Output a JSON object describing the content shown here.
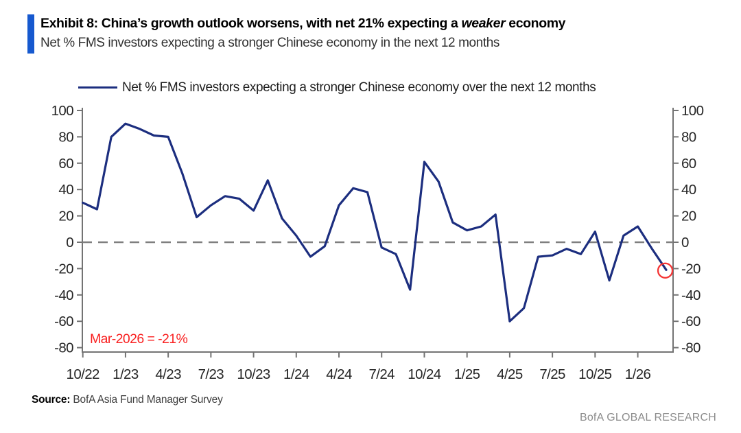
{
  "header": {
    "title_pre": "Exhibit 8: China’s growth outlook worsens, with net 21% expecting a ",
    "title_em": "weaker",
    "title_post": " economy",
    "subtitle": "Net % FMS investors expecting a stronger Chinese economy in the next 12 months"
  },
  "legend": {
    "label": "Net % FMS investors expecting a stronger Chinese economy over the next 12 months"
  },
  "chart_data": {
    "type": "line",
    "series_name": "Net % FMS investors expecting a stronger Chinese economy over the next 12 months",
    "months": [
      "10/22",
      "11/22",
      "12/22",
      "1/23",
      "2/23",
      "3/23",
      "4/23",
      "5/23",
      "6/23",
      "7/23",
      "8/23",
      "9/23",
      "10/23",
      "11/23",
      "12/23",
      "1/24",
      "2/24",
      "3/24",
      "4/24",
      "5/24",
      "6/24",
      "7/24",
      "8/24",
      "9/24",
      "10/24",
      "11/24",
      "12/24",
      "1/25",
      "2/25",
      "3/25",
      "4/25",
      "5/25",
      "6/25",
      "7/25",
      "8/25",
      "9/25",
      "10/25",
      "11/25",
      "12/25",
      "1/26",
      "2/26",
      "3/26"
    ],
    "values": [
      30,
      25,
      80,
      90,
      86,
      81,
      80,
      52,
      19,
      28,
      35,
      33,
      24,
      47,
      18,
      5,
      -11,
      -3,
      28,
      41,
      38,
      -4,
      -9,
      -36,
      61,
      46,
      15,
      9,
      12,
      21,
      -60,
      -50,
      -11,
      -10,
      -5,
      -9,
      8,
      -29,
      5,
      12,
      -5,
      -21
    ],
    "ylim": [
      -80,
      100
    ],
    "ytick_step": 20,
    "x_tick_labels": [
      "10/22",
      "1/23",
      "4/23",
      "7/23",
      "10/23",
      "1/24",
      "4/24",
      "7/24",
      "10/24",
      "1/25",
      "4/25",
      "7/25",
      "10/25",
      "1/26"
    ],
    "x_tick_every": 3,
    "grid": "off",
    "zero_line": "dashed",
    "legend_position": "top",
    "annotation": {
      "label": "Mar-2026 = -21%",
      "highlight_month": "3/26",
      "highlight_value": -21
    }
  },
  "footer": {
    "source_label": "Source:",
    "source_text": " BofA Asia Fund Manager Survey",
    "brand": "BofA GLOBAL RESEARCH"
  },
  "colors": {
    "line": "#1c2e7f",
    "accent_bar": "#1659cf",
    "annotation": "#f92121",
    "highlight_ring": "#f43434",
    "zero_line": "#7f7f7f",
    "axis": "#737373",
    "tick_label": "#262626",
    "brand": "#8c8c8c"
  }
}
